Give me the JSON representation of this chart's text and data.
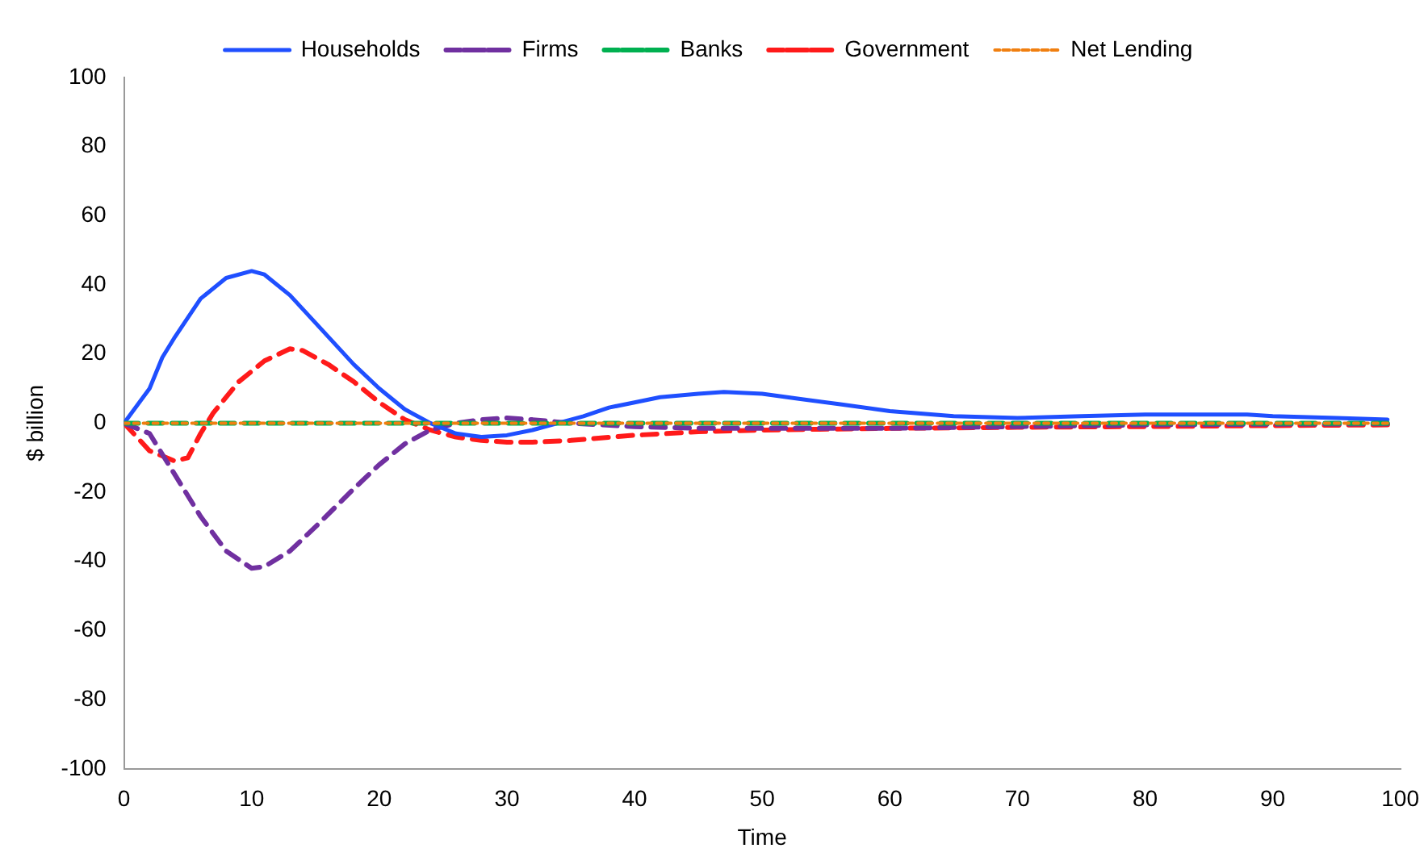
{
  "chart_data": {
    "type": "line",
    "xlabel": "Time",
    "ylabel": "$ billion",
    "xlim": [
      0,
      100
    ],
    "xticks": [
      0,
      10,
      20,
      30,
      40,
      50,
      60,
      70,
      80,
      90,
      100
    ],
    "ylim": [
      -100,
      100
    ],
    "yticks": [
      -100,
      -80,
      -60,
      -40,
      -20,
      0,
      20,
      40,
      60,
      80,
      100
    ],
    "grid": false,
    "legend": "top",
    "marker": "none",
    "series": [
      {
        "name": "Households",
        "color": "#1f4fff",
        "line_style": "solid",
        "x": [
          0,
          2,
          3,
          4,
          6,
          8,
          10,
          11,
          13,
          15,
          18,
          20,
          22,
          24,
          26,
          28,
          30,
          32,
          34,
          36,
          38,
          40,
          42,
          45,
          47,
          50,
          53,
          56,
          60,
          65,
          70,
          75,
          80,
          85,
          88,
          90,
          95,
          99
        ],
        "values": [
          0,
          10,
          19,
          25,
          36,
          42,
          44,
          43,
          37,
          29,
          17,
          10,
          4,
          0,
          -3,
          -4,
          -3.5,
          -2,
          0,
          2,
          4.5,
          6,
          7.5,
          8.5,
          9,
          8.5,
          7,
          5.5,
          3.5,
          2,
          1.5,
          2,
          2.5,
          2.5,
          2.5,
          2,
          1.5,
          1
        ]
      },
      {
        "name": "Firms",
        "color": "#7030a0",
        "line_style": "dashed",
        "x": [
          0,
          2,
          4,
          6,
          8,
          10,
          11,
          13,
          15,
          18,
          20,
          22,
          24,
          26,
          28,
          30,
          32,
          35,
          40,
          45,
          50,
          60,
          70,
          80,
          90,
          99
        ],
        "values": [
          0,
          -3,
          -15,
          -27,
          -37,
          -42,
          -41.5,
          -37,
          -30,
          -19,
          -12,
          -6,
          -2,
          0,
          1,
          1.5,
          1,
          0,
          -1,
          -1.5,
          -1.5,
          -1.5,
          -1,
          -0.5,
          -0.3,
          -0.2
        ]
      },
      {
        "name": "Banks",
        "color": "#00b050",
        "line_style": "dashed",
        "x": [
          0,
          99
        ],
        "values": [
          0,
          0
        ]
      },
      {
        "name": "Government",
        "color": "#ff1a1a",
        "line_style": "dashed",
        "x": [
          0,
          2,
          4,
          5,
          6,
          7,
          9,
          11,
          13,
          14,
          16,
          18,
          20,
          22,
          24,
          26,
          28,
          30,
          32,
          35,
          40,
          45,
          50,
          60,
          70,
          80,
          90,
          99
        ],
        "values": [
          0,
          -8,
          -11,
          -10,
          -3,
          3,
          12,
          18,
          21.5,
          21,
          17,
          12,
          6,
          1,
          -2,
          -4,
          -5,
          -5.5,
          -5.5,
          -5,
          -3.5,
          -2.5,
          -2,
          -1.5,
          -1.2,
          -1,
          -0.7,
          -0.5
        ]
      },
      {
        "name": "Net Lending",
        "color": "#f07f10",
        "line_style": "dotted",
        "x": [
          0,
          99
        ],
        "values": [
          0,
          0
        ]
      }
    ]
  }
}
